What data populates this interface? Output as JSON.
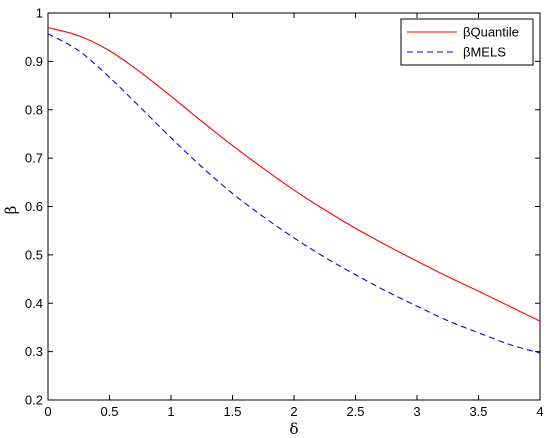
{
  "chart_data": {
    "type": "line",
    "title": "",
    "xlabel": "δ",
    "ylabel": "β",
    "xlim": [
      0,
      4
    ],
    "ylim": [
      0.2,
      1.0
    ],
    "xticks": [
      0,
      0.5,
      1,
      1.5,
      2,
      2.5,
      3,
      3.5,
      4
    ],
    "xtick_labels": [
      "0",
      "0.5",
      "1",
      "1.5",
      "2",
      "2.5",
      "3",
      "3.5",
      "4"
    ],
    "yticks": [
      0.2,
      0.3,
      0.4,
      0.5,
      0.6,
      0.7,
      0.8,
      0.9,
      1.0
    ],
    "ytick_labels": [
      "0.2",
      "0.3",
      "0.4",
      "0.5",
      "0.6",
      "0.7",
      "0.8",
      "0.9",
      "1"
    ],
    "grid": false,
    "legend_position": "top-right",
    "x": [
      0,
      0.25,
      0.5,
      0.75,
      1.0,
      1.25,
      1.5,
      1.75,
      2.0,
      2.25,
      2.5,
      2.75,
      3.0,
      3.25,
      3.5,
      3.75,
      4.0
    ],
    "series": [
      {
        "name": "βQuantile",
        "color": "#ff0000",
        "dash": "solid",
        "values": [
          0.97,
          0.953,
          0.922,
          0.878,
          0.828,
          0.776,
          0.726,
          0.679,
          0.634,
          0.593,
          0.555,
          0.52,
          0.487,
          0.455,
          0.425,
          0.394,
          0.363
        ]
      },
      {
        "name": "βMELS",
        "color": "#0000ff",
        "dash": "dashed",
        "values": [
          0.957,
          0.922,
          0.867,
          0.805,
          0.742,
          0.682,
          0.627,
          0.579,
          0.535,
          0.495,
          0.459,
          0.425,
          0.394,
          0.364,
          0.339,
          0.315,
          0.297
        ]
      }
    ]
  }
}
